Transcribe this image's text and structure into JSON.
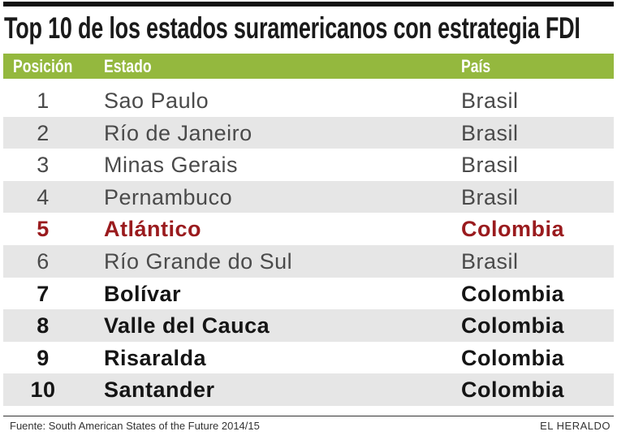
{
  "title": "Top 10 de los estados suramericanos con estrategia FDI",
  "table": {
    "header": [
      "Posición",
      "Estado",
      "País"
    ],
    "rows": [
      [
        "1",
        "Sao Paulo",
        "Brasil"
      ],
      [
        "2",
        "Río de Janeiro",
        "Brasil"
      ],
      [
        "3",
        "Minas Gerais",
        "Brasil"
      ],
      [
        "4",
        "Pernambuco",
        "Brasil"
      ],
      [
        "5",
        "Atlántico",
        "Colombia"
      ],
      [
        "6",
        "Río Grande do Sul",
        "Brasil"
      ],
      [
        "7",
        "Bolívar",
        "Colombia"
      ],
      [
        "8",
        "Valle del Cauca",
        "Colombia"
      ],
      [
        "9",
        "Risaralda",
        "Colombia"
      ],
      [
        "10",
        "Santander",
        "Colombia"
      ]
    ]
  },
  "footer": {
    "source": "Fuente: South American States of the Future 2014/15",
    "brand": "EL HERALDO"
  }
}
